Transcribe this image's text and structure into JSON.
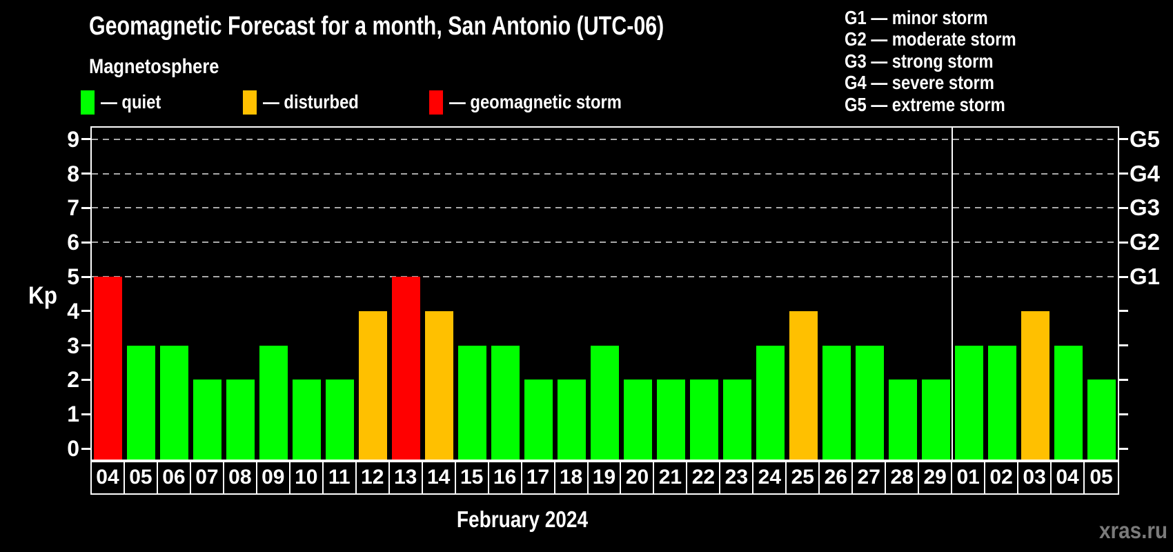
{
  "page": {
    "title": "Geomagnetic Forecast for a month, San Antonio (UTC-06)",
    "subtitle": "Magnetosphere",
    "watermark": "xras.ru"
  },
  "legend": {
    "items": [
      {
        "key": "quiet",
        "label": "— quiet",
        "color": "#00ff00"
      },
      {
        "key": "disturbed",
        "label": "— disturbed",
        "color": "#ffc000"
      },
      {
        "key": "storm",
        "label": "— geomagnetic storm",
        "color": "#ff0000"
      }
    ]
  },
  "g_legend": {
    "lines": [
      "G1 — minor storm",
      "G2 — moderate storm",
      "G3 — strong storm",
      "G4 — severe storm",
      "G5 — extreme storm"
    ]
  },
  "chart_data": {
    "type": "bar",
    "title": "Geomagnetic Forecast for a month, San Antonio (UTC-06)",
    "ylabel": "Kp",
    "xlabel": "February 2024",
    "ylim": [
      0,
      9
    ],
    "grid": "dashed horizontal at G-levels",
    "y_ticks": [
      0,
      1,
      2,
      3,
      4,
      5,
      6,
      7,
      8,
      9
    ],
    "gridline_values": [
      5,
      6,
      7,
      8,
      9
    ],
    "right_axis": [
      {
        "value": 5,
        "label": "G1"
      },
      {
        "value": 6,
        "label": "G2"
      },
      {
        "value": 7,
        "label": "G3"
      },
      {
        "value": 8,
        "label": "G4"
      },
      {
        "value": 9,
        "label": "G5"
      }
    ],
    "categories": [
      "04",
      "05",
      "06",
      "07",
      "08",
      "09",
      "10",
      "11",
      "12",
      "13",
      "14",
      "15",
      "16",
      "17",
      "18",
      "19",
      "20",
      "21",
      "22",
      "23",
      "24",
      "25",
      "26",
      "27",
      "28",
      "29",
      "01",
      "02",
      "03",
      "04",
      "05"
    ],
    "values": [
      5,
      3,
      3,
      2,
      2,
      3,
      2,
      2,
      4,
      5,
      4,
      3,
      3,
      2,
      2,
      3,
      2,
      2,
      2,
      2,
      3,
      4,
      3,
      3,
      2,
      2,
      3,
      3,
      4,
      3,
      2
    ],
    "statuses": [
      "storm",
      "quiet",
      "quiet",
      "quiet",
      "quiet",
      "quiet",
      "quiet",
      "quiet",
      "disturbed",
      "storm",
      "disturbed",
      "quiet",
      "quiet",
      "quiet",
      "quiet",
      "quiet",
      "quiet",
      "quiet",
      "quiet",
      "quiet",
      "quiet",
      "disturbed",
      "quiet",
      "quiet",
      "quiet",
      "quiet",
      "quiet",
      "quiet",
      "disturbed",
      "quiet",
      "quiet"
    ],
    "month_divider_index": 26,
    "colors": {
      "quiet": "#00ff00",
      "disturbed": "#ffc000",
      "storm": "#ff0000"
    }
  }
}
